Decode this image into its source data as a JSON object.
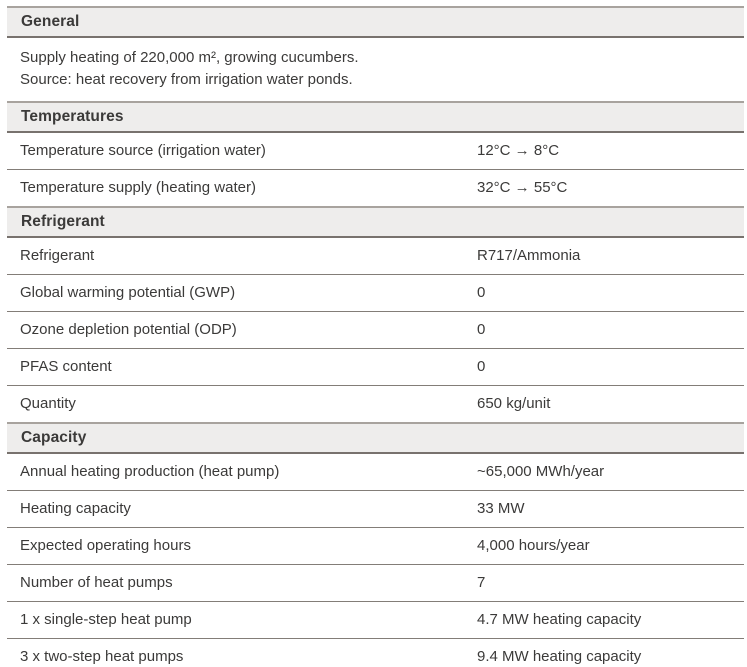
{
  "colors": {
    "text": "#3b3a39",
    "section_band_background": "#eeedec",
    "section_band_border_top": "#a8a39e",
    "section_band_border_bottom": "#78726e",
    "row_separator": "#837d78",
    "page_background": "#ffffff"
  },
  "table": {
    "sections": [
      {
        "title": "General",
        "description_lines": [
          "Supply heating of 220,000 m², growing cucumbers.",
          "Source: heat recovery from irrigation water ponds."
        ],
        "rows": []
      },
      {
        "title": "Temperatures",
        "rows": [
          {
            "label": "Temperature source (irrigation water)",
            "value": "12°C → 8°C"
          },
          {
            "label": "Temperature supply (heating water)",
            "value": "32°C → 55°C"
          }
        ]
      },
      {
        "title": "Refrigerant",
        "rows": [
          {
            "label": "Refrigerant",
            "value": "R717/Ammonia"
          },
          {
            "label": "Global warming potential (GWP)",
            "value": "0"
          },
          {
            "label": "Ozone depletion potential (ODP)",
            "value": "0"
          },
          {
            "label": "PFAS content",
            "value": "0"
          },
          {
            "label": "Quantity",
            "value": "650 kg/unit"
          }
        ]
      },
      {
        "title": "Capacity",
        "rows": [
          {
            "label": "Annual heating production (heat pump)",
            "value": "~65,000 MWh/year"
          },
          {
            "label": "Heating capacity",
            "value": "33 MW"
          },
          {
            "label": "Expected operating hours",
            "value": "4,000 hours/year"
          },
          {
            "label": "Number of heat pumps",
            "value": "7"
          },
          {
            "label": "1 x single-step heat pump",
            "value": "4.7 MW heating capacity"
          },
          {
            "label": "3 x two-step heat pumps",
            "value": "9.4 MW heating capacity"
          }
        ]
      }
    ]
  }
}
